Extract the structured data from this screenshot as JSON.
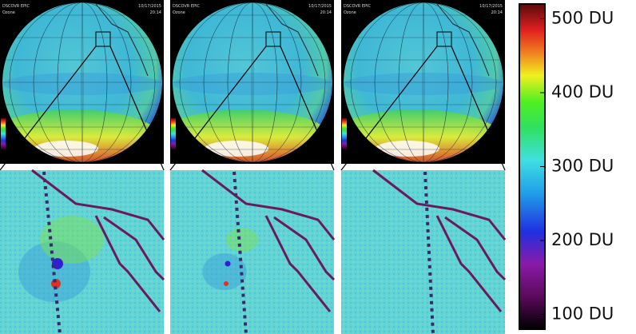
{
  "panels": [
    {
      "source": "DSCOVR EPIC",
      "product": "Ozone",
      "date": "10/17/2015",
      "time": "20:14"
    },
    {
      "source": "DSCOVR EPIC",
      "product": "Ozone",
      "date": "10/17/2015",
      "time": "20:14"
    },
    {
      "source": "DSCOVR EPIC",
      "product": "Ozone",
      "date": "10/17/2015",
      "time": "20:14"
    }
  ],
  "colorbar": {
    "lim": [
      80,
      520
    ],
    "ticks": [
      {
        "value": 500,
        "label": "500 DU"
      },
      {
        "value": 400,
        "label": "400 DU"
      },
      {
        "value": 300,
        "label": "300 DU"
      },
      {
        "value": 200,
        "label": "200 DU"
      },
      {
        "value": 100,
        "label": "100 DU"
      }
    ]
  }
}
